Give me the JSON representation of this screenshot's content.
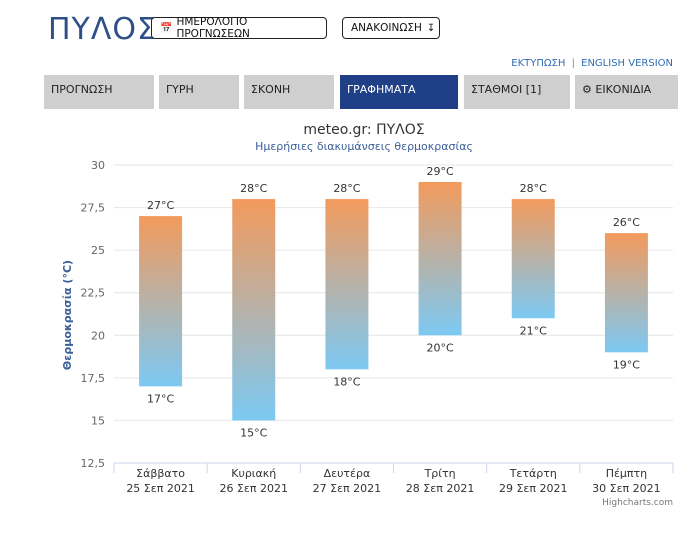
{
  "header": {
    "city": "ΠΥΛΟΣ",
    "calendar_button": "ΗΜΕΡΟΛΟΓΙΟ ΠΡΟΓΝΩΣΕΩΝ",
    "calendar_icon": "calendar-icon",
    "announce_button": "ΑΝΑΚΟΙΝΩΣΗ",
    "announce_icon": "arrow-down-icon",
    "print_link": "ΕΚΤΥΠΩΣΗ",
    "separator": "|",
    "english_link": "ENGLISH VERSION"
  },
  "tabs": [
    {
      "label": "ΠΡΟΓΝΩΣΗ",
      "active": false
    },
    {
      "label": "ΓΥΡΗ",
      "active": false
    },
    {
      "label": "ΣΚΟΝΗ",
      "active": false
    },
    {
      "label": "ΓΡΑΦΗΜΑΤΑ",
      "active": true
    },
    {
      "label": "ΣΤΑΘΜΟΙ [1]",
      "active": false
    },
    {
      "label": "ΕΙΚΟΝΙΔΙΑ",
      "active": false,
      "icon": "gear-icon"
    }
  ],
  "colors": {
    "accent": "#1f3f86",
    "bar_top": "#f39a5c",
    "bar_bottom": "#7cc9f3",
    "title": "#333333",
    "subtitle": "#3a5f99"
  },
  "chart_data": {
    "type": "columnrange",
    "title": "meteo.gr: ΠΥΛΟΣ",
    "subtitle": "Ημερήσιες διακυμάνσεις θερμοκρασίας",
    "ylabel": "Θερμοκρασία (°C)",
    "ylim": [
      12.5,
      30
    ],
    "yticks": [
      "12,5",
      "15",
      "17,5",
      "20",
      "22,5",
      "25",
      "27,5",
      "30"
    ],
    "categories": [
      [
        "Σάββατο",
        "25 Σεπ 2021"
      ],
      [
        "Κυριακή",
        "26 Σεπ 2021"
      ],
      [
        "Δευτέρα",
        "27 Σεπ 2021"
      ],
      [
        "Τρίτη",
        "28 Σεπ 2021"
      ],
      [
        "Τετάρτη",
        "29 Σεπ 2021"
      ],
      [
        "Πέμπτη",
        "30 Σεπ 2021"
      ]
    ],
    "low": [
      17,
      15,
      18,
      20,
      21,
      19
    ],
    "high": [
      27,
      28,
      28,
      29,
      28,
      26
    ],
    "unit": "°C",
    "credit": "Highcharts.com"
  }
}
